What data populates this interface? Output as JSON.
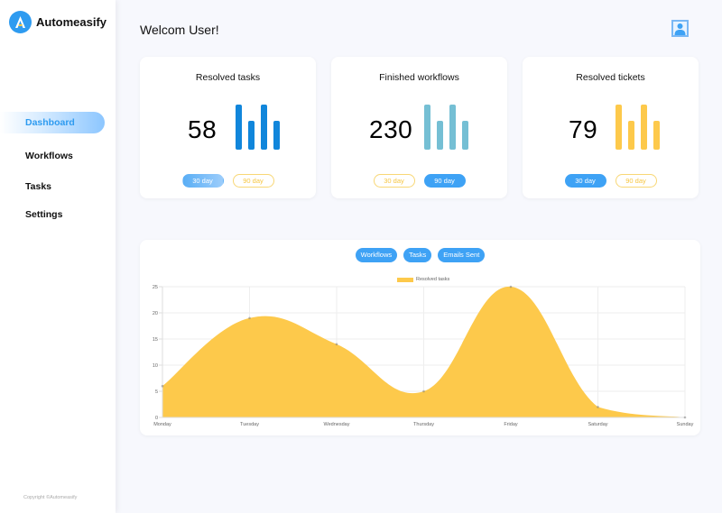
{
  "app": {
    "name": "Automeasify",
    "brand_color": "#2e9bf0"
  },
  "sidebar": {
    "items": [
      {
        "label": "Dashboard",
        "active": true
      },
      {
        "label": "Workflows",
        "active": false
      },
      {
        "label": "Tasks",
        "active": false
      },
      {
        "label": "Settings",
        "active": false
      }
    ],
    "copyright": "Copyright ©Automeasify"
  },
  "header": {
    "welcome": "Welcom User!",
    "avatar_icon": "user-avatar-icon"
  },
  "cards": [
    {
      "title": "Resolved tasks",
      "value": "58",
      "bar_color": "#1186db",
      "pills": [
        {
          "label": "30 day",
          "selected": true
        },
        {
          "label": "90 day",
          "selected": false
        }
      ]
    },
    {
      "title": "Finished workflows",
      "value": "230",
      "bar_color": "#75bfd4",
      "pills": [
        {
          "label": "30 day",
          "selected": false
        },
        {
          "label": "90 day",
          "selected": true
        }
      ]
    },
    {
      "title": "Resolved tickets",
      "value": "79",
      "bar_color": "#fdc94b",
      "pills": [
        {
          "label": "30 day",
          "selected": true
        },
        {
          "label": "90 day",
          "selected": false
        }
      ]
    }
  ],
  "chart_panel": {
    "tabs": [
      "Workflows",
      "Tasks",
      "Emails Sent"
    ]
  },
  "chart_data": {
    "type": "area",
    "title": "",
    "categories": [
      "Monday",
      "Tuesday",
      "Wednesday",
      "Thursday",
      "Friday",
      "Saturday",
      "Sunday"
    ],
    "series": [
      {
        "name": "Resolved tasks",
        "values": [
          6,
          19,
          14,
          5,
          25,
          2,
          0
        ],
        "color": "#fdc94b"
      }
    ],
    "xlabel": "",
    "ylabel": "",
    "ylim": [
      0,
      25
    ],
    "yticks": [
      0,
      5,
      10,
      15,
      20,
      25
    ],
    "grid": true,
    "legend_position": "top"
  }
}
